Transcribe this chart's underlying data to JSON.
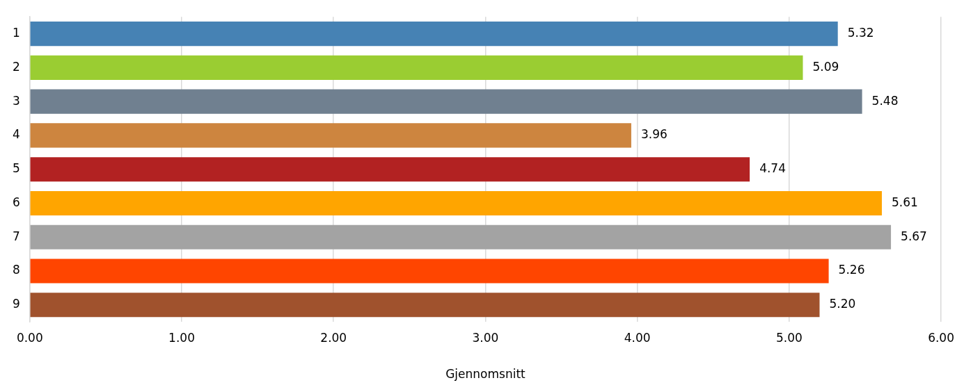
{
  "chart_data": {
    "type": "bar",
    "orientation": "horizontal",
    "xlabel": "Gjennomsnitt",
    "categories": [
      "1",
      "2",
      "3",
      "4",
      "5",
      "6",
      "7",
      "8",
      "9"
    ],
    "values": [
      5.32,
      5.09,
      5.48,
      3.96,
      4.74,
      5.61,
      5.67,
      5.26,
      5.2
    ],
    "value_labels": [
      "5.32",
      "5.09",
      "5.48",
      "3.96",
      "4.74",
      "5.61",
      "5.67",
      "5.26",
      "5.20"
    ],
    "colors": [
      "#4682b4",
      "#9acd32",
      "#708090",
      "#cd853f",
      "#b22222",
      "#ffa500",
      "#a3a3a3",
      "#ff4500",
      "#a0522d"
    ],
    "xlim": [
      0,
      6
    ],
    "xticks": [
      {
        "value": 0,
        "label": "0.00"
      },
      {
        "value": 1,
        "label": "1.00"
      },
      {
        "value": 2,
        "label": "2.00"
      },
      {
        "value": 3,
        "label": "3.00"
      },
      {
        "value": 4,
        "label": "4.00"
      },
      {
        "value": 5,
        "label": "5.00"
      },
      {
        "value": 6,
        "label": "6.00"
      }
    ],
    "grid": "x",
    "legend": false
  }
}
